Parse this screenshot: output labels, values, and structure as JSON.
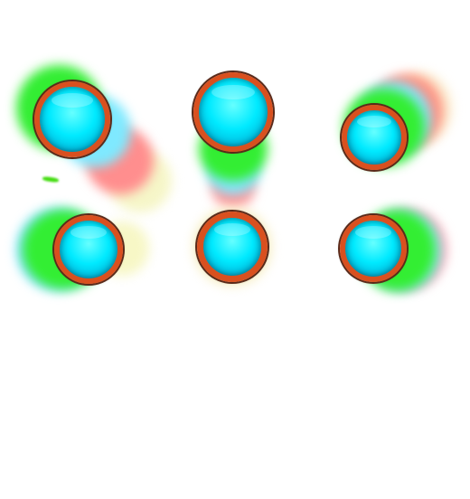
{
  "scene": {
    "background": "#ffffff",
    "button_core_color": "#00eaff",
    "button_ring_color": "#d9501f",
    "trail_colors": [
      "#22ee22",
      "#66e6ff",
      "#ff8a8a",
      "#f6f6b0"
    ],
    "rows": 2,
    "columns": 3
  }
}
